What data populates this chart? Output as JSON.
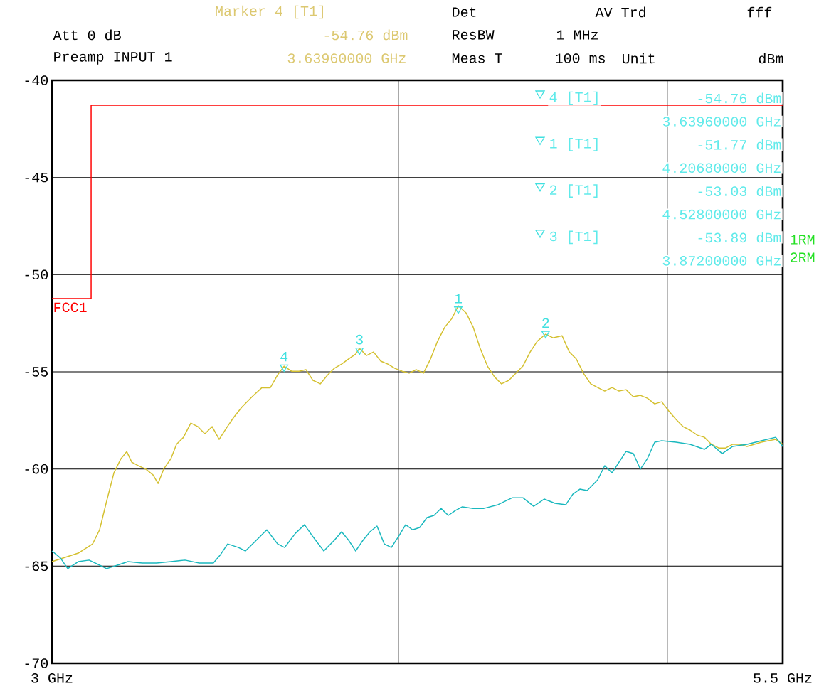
{
  "chart_data": {
    "type": "line",
    "xlim": [
      3,
      5.5
    ],
    "ylim": [
      -70,
      -40
    ],
    "xticks": [
      {
        "value": 3,
        "label": "3 GHz"
      },
      {
        "value": 5.5,
        "label": "5.5 GHz"
      }
    ],
    "yticks": [
      -40,
      -45,
      -50,
      -55,
      -60,
      -65,
      -70
    ],
    "grid": "y",
    "ref_lines": [
      {
        "axis": "x",
        "value": 4.185,
        "color": "#000000"
      },
      {
        "axis": "x",
        "value": 5.105,
        "color": "#000000"
      }
    ],
    "series": [
      {
        "name": "FCC1",
        "color": "#ff0000",
        "x": [
          3,
          3.134,
          3.134,
          5.5
        ],
        "values": [
          -51.23,
          -51.23,
          -41.28,
          -41.28
        ]
      },
      {
        "color": "#d4c030",
        "x": [
          3.0,
          3.09,
          3.139,
          3.163,
          3.187,
          3.212,
          3.236,
          3.256,
          3.273,
          3.297,
          3.321,
          3.346,
          3.363,
          3.382,
          3.407,
          3.426,
          3.45,
          3.475,
          3.499,
          3.523,
          3.548,
          3.572,
          3.596,
          3.621,
          3.65,
          3.686,
          3.718,
          3.747,
          3.772,
          3.794,
          3.82,
          3.845,
          3.869,
          3.893,
          3.918,
          3.942,
          3.966,
          3.991,
          4.015,
          4.039,
          4.052,
          4.076,
          4.1,
          4.125,
          4.149,
          4.173,
          4.198,
          4.222,
          4.246,
          4.271,
          4.295,
          4.319,
          4.344,
          4.368,
          4.39,
          4.417,
          4.441,
          4.465,
          4.49,
          4.514,
          4.538,
          4.563,
          4.587,
          4.611,
          4.636,
          4.66,
          4.689,
          4.714,
          4.745,
          4.77,
          4.794,
          4.818,
          4.843,
          4.867,
          4.891,
          4.916,
          4.94,
          4.964,
          4.989,
          5.013,
          5.037,
          5.062,
          5.086,
          5.11,
          5.135,
          5.159,
          5.183,
          5.208,
          5.232,
          5.256,
          5.281,
          5.305,
          5.329,
          5.354,
          5.378,
          5.403,
          5.427,
          5.451,
          5.476,
          5.5
        ],
        "values": [
          -64.77,
          -64.33,
          -63.86,
          -63.13,
          -61.66,
          -60.2,
          -59.47,
          -59.11,
          -59.65,
          -59.84,
          -60.01,
          -60.31,
          -60.75,
          -60.01,
          -59.47,
          -58.73,
          -58.37,
          -57.64,
          -57.82,
          -58.19,
          -57.82,
          -58.48,
          -57.91,
          -57.36,
          -56.81,
          -56.26,
          -55.82,
          -55.82,
          -55.16,
          -54.71,
          -54.97,
          -54.97,
          -54.89,
          -55.44,
          -55.62,
          -55.18,
          -54.82,
          -54.6,
          -54.34,
          -54.09,
          -53.79,
          -54.16,
          -53.98,
          -54.45,
          -54.6,
          -54.82,
          -54.97,
          -55.07,
          -54.89,
          -55.07,
          -54.34,
          -53.43,
          -52.7,
          -52.26,
          -51.6,
          -51.97,
          -52.7,
          -53.79,
          -54.71,
          -55.26,
          -55.62,
          -55.44,
          -55.07,
          -54.71,
          -53.98,
          -53.43,
          -53.06,
          -53.25,
          -53.14,
          -53.98,
          -54.34,
          -55.07,
          -55.62,
          -55.81,
          -55.99,
          -55.81,
          -55.99,
          -55.92,
          -56.28,
          -56.21,
          -56.36,
          -56.65,
          -56.54,
          -57.01,
          -57.45,
          -57.82,
          -58.0,
          -58.26,
          -58.37,
          -58.73,
          -58.92,
          -58.92,
          -58.73,
          -58.73,
          -58.84,
          -58.73,
          -58.62,
          -58.55,
          -58.48,
          -58.73
        ]
      },
      {
        "color": "#1ab8be",
        "x": [
          3.0,
          3.029,
          3.054,
          3.09,
          3.127,
          3.163,
          3.187,
          3.224,
          3.26,
          3.309,
          3.358,
          3.407,
          3.455,
          3.504,
          3.552,
          3.577,
          3.601,
          3.638,
          3.662,
          3.699,
          3.735,
          3.772,
          3.796,
          3.833,
          3.864,
          3.893,
          3.93,
          3.966,
          3.991,
          4.015,
          4.039,
          4.064,
          4.088,
          4.112,
          4.137,
          4.161,
          4.185,
          4.21,
          4.234,
          4.258,
          4.283,
          4.307,
          4.331,
          4.356,
          4.38,
          4.404,
          4.441,
          4.478,
          4.526,
          4.575,
          4.611,
          4.648,
          4.684,
          4.721,
          4.758,
          4.782,
          4.806,
          4.831,
          4.867,
          4.891,
          4.916,
          4.94,
          4.964,
          4.989,
          5.013,
          5.037,
          5.062,
          5.086,
          5.135,
          5.183,
          5.232,
          5.256,
          5.293,
          5.329,
          5.378,
          5.427,
          5.476,
          5.5
        ],
        "values": [
          -64.22,
          -64.58,
          -65.13,
          -64.77,
          -64.69,
          -64.95,
          -65.13,
          -64.95,
          -64.77,
          -64.84,
          -64.84,
          -64.77,
          -64.69,
          -64.84,
          -64.84,
          -64.4,
          -63.86,
          -64.04,
          -64.22,
          -63.67,
          -63.13,
          -63.86,
          -64.04,
          -63.31,
          -62.87,
          -63.49,
          -64.22,
          -63.67,
          -63.23,
          -63.67,
          -64.22,
          -63.67,
          -63.23,
          -62.94,
          -63.86,
          -64.04,
          -63.49,
          -62.87,
          -63.13,
          -63.01,
          -62.5,
          -62.39,
          -62.03,
          -62.39,
          -62.14,
          -61.95,
          -62.03,
          -62.03,
          -61.84,
          -61.48,
          -61.48,
          -61.92,
          -61.55,
          -61.77,
          -61.84,
          -61.3,
          -61.04,
          -61.11,
          -60.56,
          -59.83,
          -60.2,
          -59.65,
          -59.1,
          -59.21,
          -60.01,
          -59.47,
          -58.62,
          -58.55,
          -58.62,
          -58.73,
          -58.99,
          -58.73,
          -59.21,
          -58.84,
          -58.73,
          -58.55,
          -58.37,
          -58.84
        ]
      }
    ],
    "annotations": [
      "Marker 4 [T1]",
      "-54.76 dBm",
      "3.63960000 GHz",
      "Att 0 dB",
      "Preamp INPUT 1",
      "Det",
      "AV Trd",
      "ResBW",
      "1 MHz",
      "Meas T",
      "100 ms",
      "Unit",
      "dBm",
      "fff",
      "1RM",
      "2RM",
      "4 [T1]",
      "-54.76 dBm",
      "3.63960000 GHz",
      "1 [T1]",
      "-51.77 dBm",
      "4.20680000 GHz",
      "2 [T1]",
      "-53.03 dBm",
      "4.52800000 GHz",
      "3 [T1]",
      "-53.89 dBm",
      "3.87200000 GHz",
      {
        "text": "4",
        "x": 3.794,
        "y": -54.76
      },
      {
        "text": "3",
        "x": 4.052,
        "y": -53.89
      },
      {
        "text": "1",
        "x": 4.39,
        "y": -51.77
      },
      {
        "text": "2",
        "x": 4.689,
        "y": -53.03
      }
    ]
  }
}
